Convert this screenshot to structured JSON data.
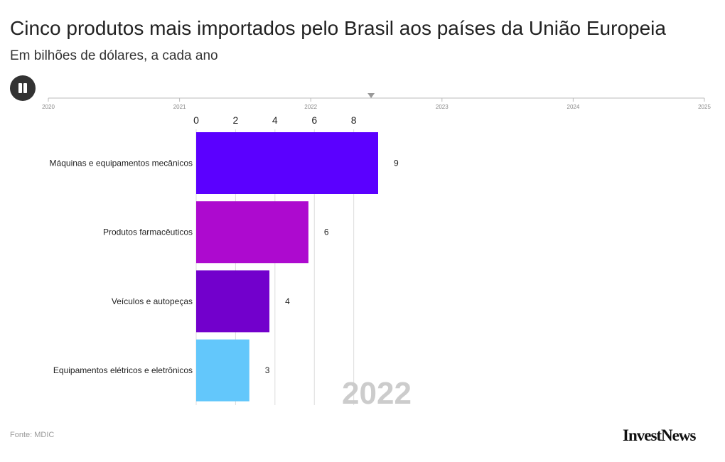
{
  "header": {
    "title": "Cinco produtos mais importados pelo Brasil aos países da União Europeia",
    "subtitle": "Em bilhões de dólares, a cada ano"
  },
  "timeline": {
    "years": [
      "2020",
      "2021",
      "2022",
      "2023",
      "2024",
      "2025"
    ],
    "current_year": "2022",
    "marker_value": 2022.46,
    "play_state": "playing",
    "play_icon": "pause-icon"
  },
  "footer": {
    "source": "Fonte: MDIC",
    "logo_text": "InvestNews"
  },
  "chart_data": {
    "type": "bar",
    "orientation": "horizontal",
    "title": "Cinco produtos mais importados pelo Brasil aos países da União Europeia",
    "subtitle": "Em bilhões de dólares, a cada ano",
    "period_label": "2022",
    "categories": [
      "Máquinas e equipamentos mecânicos",
      "Produtos farmacêuticos",
      "Veículos e autopeças",
      "Equipamentos elétricos e eletrônicos"
    ],
    "values": [
      9.24,
      5.7,
      3.72,
      2.7
    ],
    "value_labels": [
      "9",
      "6",
      "4",
      "3"
    ],
    "colors": [
      "#5b00ff",
      "#ad0acf",
      "#7200cc",
      "#63c7fb"
    ],
    "x_ticks": [
      0,
      2,
      4,
      6,
      8
    ],
    "x_tick_labels": [
      "0",
      "2",
      "4",
      "6",
      "8"
    ],
    "xlim": [
      0,
      9.24
    ],
    "grid": true,
    "legend": "none"
  }
}
